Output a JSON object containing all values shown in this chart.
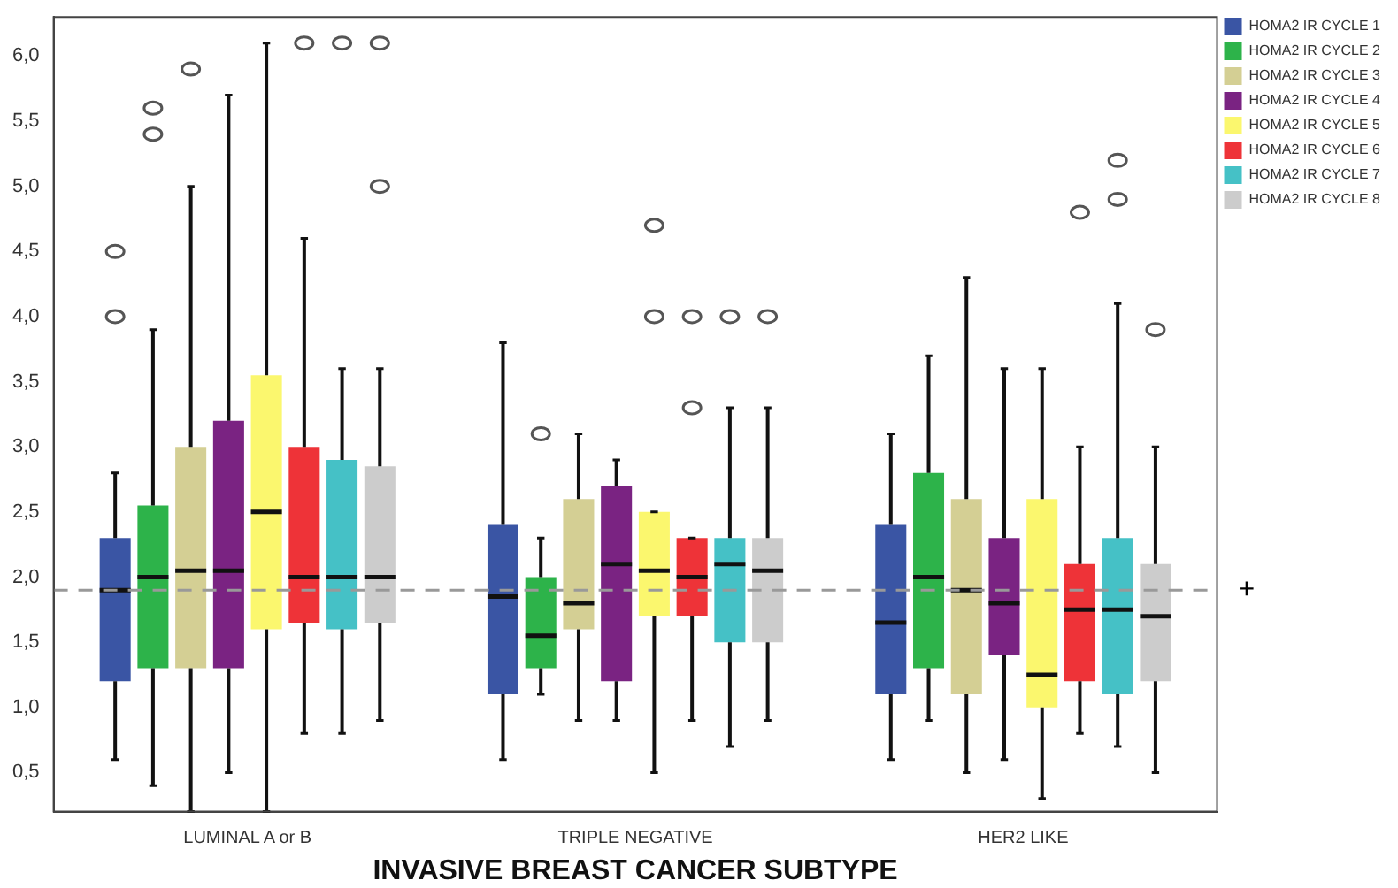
{
  "chart_data": {
    "type": "box",
    "xlabel": "INVASIVE BREAST CANCER SUBTYPE",
    "categories": [
      "LUMINAL A or B",
      "TRIPLE NEGATIVE",
      "HER2 LIKE"
    ],
    "ylim": [
      0.2,
      6.3
    ],
    "yticks": [
      {
        "value": 0.5,
        "label": "0,5"
      },
      {
        "value": 1,
        "label": "1,0"
      },
      {
        "value": 1.5,
        "label": "1,5"
      },
      {
        "value": 2,
        "label": "2,0"
      },
      {
        "value": 2.5,
        "label": "2,5"
      },
      {
        "value": 3,
        "label": "3,0"
      },
      {
        "value": 3.5,
        "label": "3,5"
      },
      {
        "value": 4,
        "label": "4,0"
      },
      {
        "value": 4.5,
        "label": "4,5"
      },
      {
        "value": 5,
        "label": "5,0"
      },
      {
        "value": 5.5,
        "label": "5,5"
      },
      {
        "value": 6,
        "label": "6,0"
      }
    ],
    "grid": false,
    "legend": "right",
    "ref_lines": [
      {
        "axis": "y",
        "value": 1.9,
        "label": "+",
        "color": "#999999",
        "line_style": "dashed"
      }
    ],
    "series": [
      {
        "name": "HOMA2 IR CYCLE 1",
        "color": "#3a55a4",
        "boxes": [
          {
            "low": 0.6,
            "q1": 1.2,
            "median": 1.9,
            "q3": 2.3,
            "high": 2.8,
            "outliers": [
              4.0,
              4.5
            ]
          },
          {
            "low": 0.6,
            "q1": 1.1,
            "median": 1.85,
            "q3": 2.4,
            "high": 3.8
          },
          {
            "low": 0.6,
            "q1": 1.1,
            "median": 1.65,
            "q3": 2.4,
            "high": 3.1
          }
        ]
      },
      {
        "name": "HOMA2 IR CYCLE 2",
        "color": "#2db34a",
        "boxes": [
          {
            "low": 0.4,
            "q1": 1.3,
            "median": 2.0,
            "q3": 2.55,
            "high": 3.9,
            "outliers": [
              5.4,
              5.6
            ]
          },
          {
            "low": 1.1,
            "q1": 1.3,
            "median": 1.55,
            "q3": 2.0,
            "high": 2.3,
            "outliers": [
              3.1
            ]
          },
          {
            "low": 0.9,
            "q1": 1.3,
            "median": 2.0,
            "q3": 2.8,
            "high": 3.7
          }
        ]
      },
      {
        "name": "HOMA2 IR CYCLE 3",
        "color": "#d4cf94",
        "boxes": [
          {
            "low": 0.2,
            "q1": 1.3,
            "median": 2.05,
            "q3": 3.0,
            "high": 5.0,
            "outliers": [
              5.9
            ]
          },
          {
            "low": 0.9,
            "q1": 1.6,
            "median": 1.8,
            "q3": 2.6,
            "high": 3.1
          },
          {
            "low": 0.5,
            "q1": 1.1,
            "median": 1.9,
            "q3": 2.6,
            "high": 4.3
          }
        ]
      },
      {
        "name": "HOMA2 IR CYCLE 4",
        "color": "#7a2382",
        "boxes": [
          {
            "low": 0.5,
            "q1": 1.3,
            "median": 2.05,
            "q3": 3.2,
            "high": 5.7
          },
          {
            "low": 0.9,
            "q1": 1.2,
            "median": 2.1,
            "q3": 2.7,
            "high": 2.9
          },
          {
            "low": 0.6,
            "q1": 1.4,
            "median": 1.8,
            "q3": 2.3,
            "high": 3.6
          }
        ]
      },
      {
        "name": "HOMA2 IR CYCLE 5",
        "color": "#fbf76e",
        "boxes": [
          {
            "low": 0.2,
            "q1": 1.6,
            "median": 2.5,
            "q3": 3.55,
            "high": 6.1
          },
          {
            "low": 0.5,
            "q1": 1.7,
            "median": 2.05,
            "q3": 2.5,
            "high": 2.5,
            "outliers": [
              4.0,
              4.7
            ]
          },
          {
            "low": 0.3,
            "q1": 1.0,
            "median": 1.25,
            "q3": 2.6,
            "high": 3.6
          }
        ]
      },
      {
        "name": "HOMA2 IR CYCLE 6",
        "color": "#ee3338",
        "boxes": [
          {
            "low": 0.8,
            "q1": 1.65,
            "median": 2.0,
            "q3": 3.0,
            "high": 4.6,
            "outliers": [
              6.1
            ]
          },
          {
            "low": 0.9,
            "q1": 1.7,
            "median": 2.0,
            "q3": 2.3,
            "high": 2.3,
            "outliers": [
              3.3,
              4.0
            ]
          },
          {
            "low": 0.8,
            "q1": 1.2,
            "median": 1.75,
            "q3": 2.1,
            "high": 3.0,
            "outliers": [
              4.8
            ]
          }
        ]
      },
      {
        "name": "HOMA2 IR CYCLE 7",
        "color": "#45c1c6",
        "boxes": [
          {
            "low": 0.8,
            "q1": 1.6,
            "median": 2.0,
            "q3": 2.9,
            "high": 3.6,
            "outliers": [
              6.1
            ]
          },
          {
            "low": 0.7,
            "q1": 1.5,
            "median": 2.1,
            "q3": 2.3,
            "high": 3.3,
            "outliers": [
              4.0
            ]
          },
          {
            "low": 0.7,
            "q1": 1.1,
            "median": 1.75,
            "q3": 2.3,
            "high": 4.1,
            "outliers": [
              4.9,
              5.2
            ]
          }
        ]
      },
      {
        "name": "HOMA2 IR CYCLE 8",
        "color": "#cccccc",
        "boxes": [
          {
            "low": 0.9,
            "q1": 1.65,
            "median": 2.0,
            "q3": 2.85,
            "high": 3.6,
            "outliers": [
              5.0,
              6.1
            ]
          },
          {
            "low": 0.9,
            "q1": 1.5,
            "median": 2.05,
            "q3": 2.3,
            "high": 3.3,
            "outliers": [
              4.0
            ]
          },
          {
            "low": 0.5,
            "q1": 1.2,
            "median": 1.7,
            "q3": 2.1,
            "high": 3.0,
            "outliers": [
              3.9
            ]
          }
        ]
      }
    ]
  }
}
